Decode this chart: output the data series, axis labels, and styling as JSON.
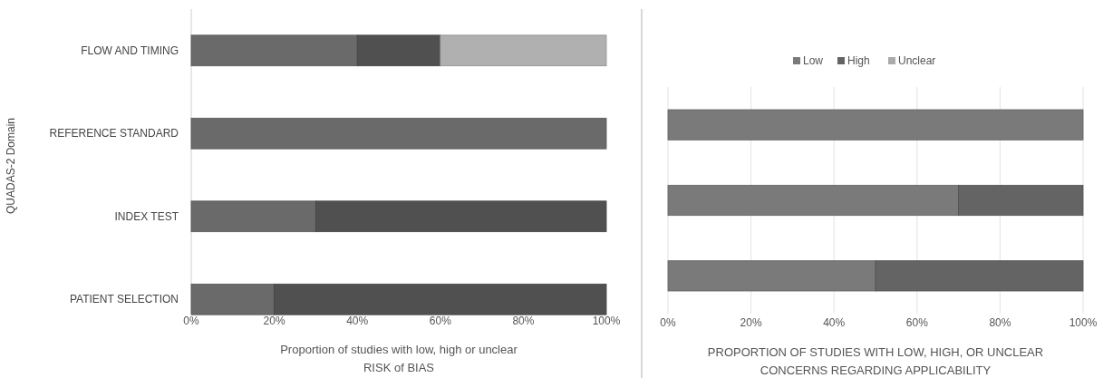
{
  "chart_data": [
    {
      "type": "bar",
      "orientation": "horizontal",
      "stacked": true,
      "ylabel": "QUADAS-2 Domain",
      "xlabel": "Proportion of studies with low, high or unclear\nRISK of BIAS",
      "categories": [
        "FLOW AND TIMING",
        "REFERENCE STANDARD",
        "INDEX TEST",
        "PATIENT SELECTION"
      ],
      "xlim": [
        0,
        100
      ],
      "xticks": [
        {
          "value": 0,
          "label": "0%"
        },
        {
          "value": 20,
          "label": "20%"
        },
        {
          "value": 40,
          "label": "40%"
        },
        {
          "value": 60,
          "label": "60%"
        },
        {
          "value": 80,
          "label": "80%"
        },
        {
          "value": 100,
          "label": "100%"
        }
      ],
      "series": [
        {
          "color": "#6a6a6a",
          "values": [
            40,
            100,
            30,
            20
          ]
        },
        {
          "color": "#505050",
          "values": [
            20,
            0,
            70,
            80
          ]
        },
        {
          "color": "#b0b0b0",
          "values": [
            40,
            0,
            0,
            0
          ]
        }
      ]
    },
    {
      "type": "bar",
      "orientation": "horizontal",
      "stacked": true,
      "xlabel": "PROPORTION OF STUDIES WITH LOW, HIGH, OR UNCLEAR\nCONCERNS REGARDING APPLICABILITY",
      "categories": [
        null,
        null,
        null
      ],
      "xlim": [
        0,
        100
      ],
      "xticks": [
        {
          "value": 0,
          "label": "0%"
        },
        {
          "value": 20,
          "label": "20%"
        },
        {
          "value": 40,
          "label": "40%"
        },
        {
          "value": 60,
          "label": "60%"
        },
        {
          "value": 80,
          "label": "80%"
        },
        {
          "value": 100,
          "label": "100%"
        }
      ],
      "grid": "x",
      "legend": "top",
      "series": [
        {
          "name": "Low",
          "color": "#7a7a7a",
          "values": [
            100,
            70,
            50
          ]
        },
        {
          "name": "High",
          "color": "#646464",
          "values": [
            0,
            30,
            50
          ]
        },
        {
          "name": "Unclear",
          "color": "#aaaaaa",
          "values": [
            0,
            0,
            0
          ]
        }
      ]
    }
  ]
}
